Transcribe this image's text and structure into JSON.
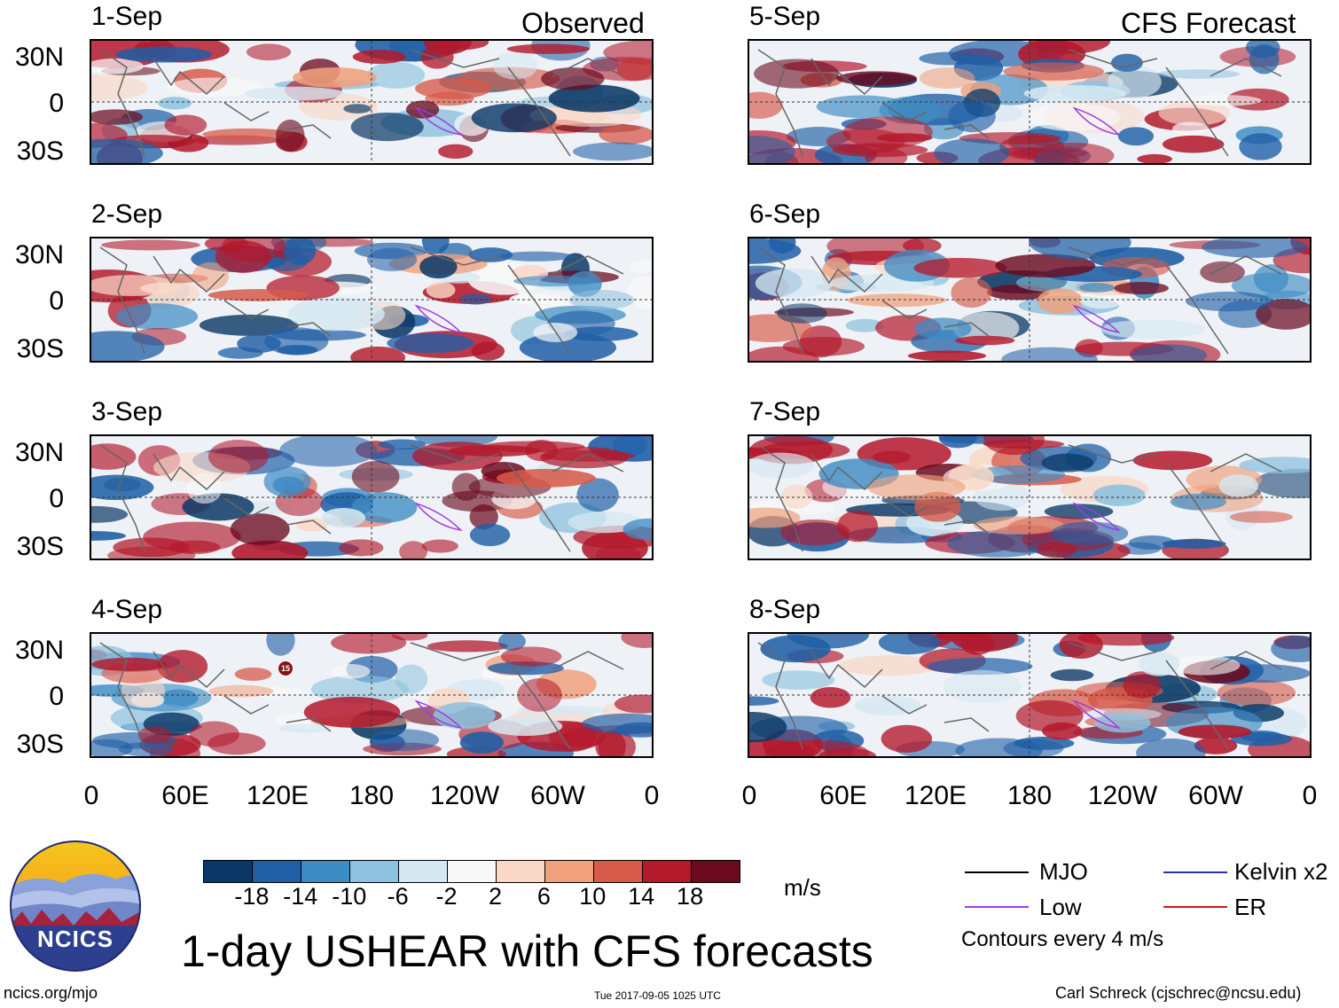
{
  "header": {
    "left_title": "Observed",
    "right_title": "CFS Forecast"
  },
  "panels_left": [
    {
      "date": "1-Sep"
    },
    {
      "date": "2-Sep"
    },
    {
      "date": "3-Sep"
    },
    {
      "date": "4-Sep"
    }
  ],
  "panels_right": [
    {
      "date": "5-Sep"
    },
    {
      "date": "6-Sep"
    },
    {
      "date": "7-Sep"
    },
    {
      "date": "8-Sep"
    }
  ],
  "lat_labels": [
    "30N",
    "0",
    "30S"
  ],
  "lon_labels": [
    "0",
    "60E",
    "120E",
    "180",
    "120W",
    "60W",
    "0"
  ],
  "storm_marker": "15",
  "colorbar": {
    "ticks": [
      "-18",
      "-14",
      "-10",
      "-6",
      "-2",
      "2",
      "6",
      "10",
      "14",
      "18"
    ],
    "units": "m/s",
    "colors": [
      "#0b3866",
      "#1f5fa6",
      "#3f8cc4",
      "#8ec2de",
      "#d6e8f2",
      "#f8f8f8",
      "#f9d8c7",
      "#f0a07c",
      "#d75a4a",
      "#b3182b",
      "#6b0a1e"
    ]
  },
  "main_title": "1-day USHEAR with CFS forecasts",
  "legend": {
    "items": [
      {
        "label": "MJO",
        "color": "#000000"
      },
      {
        "label": "Kelvin x2",
        "color": "#2d2db8"
      },
      {
        "label": "Low",
        "color": "#a23be0"
      },
      {
        "label": "ER",
        "color": "#cc1a1a"
      }
    ],
    "note": "Contours every 4 m/s"
  },
  "logo_text": "NCICS",
  "footer": {
    "url": "ncics.org/mjo",
    "timestamp": "Tue 2017-09-05 1025 UTC",
    "credit": "Carl Schreck (cjschrec@ncsu.edu)"
  }
}
